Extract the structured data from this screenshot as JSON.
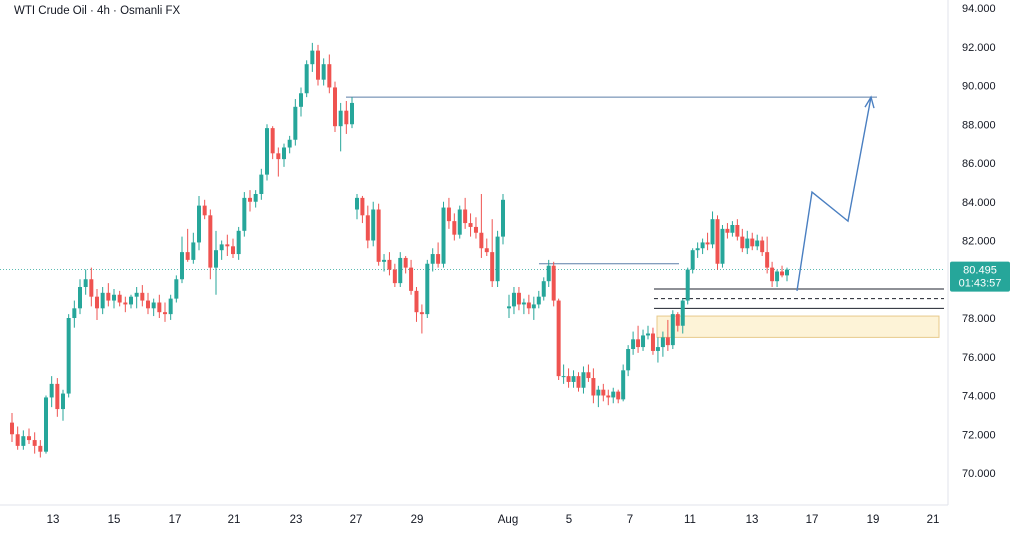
{
  "header": {
    "title": "WTI Crude Oil · 4h · Osmanli FX"
  },
  "chart_data": {
    "type": "candlestick",
    "title": "WTI Crude Oil · 4h · Osmanli FX",
    "symbol": "WTI Crude Oil",
    "interval": "4h",
    "broker": "Osmanli FX",
    "xlabel": "",
    "ylabel": "",
    "ylim": [
      69.0,
      94.5
    ],
    "y_ticks": [
      "94.000",
      "92.000",
      "90.000",
      "88.000",
      "86.000",
      "84.000",
      "82.000",
      "80.000",
      "78.000",
      "76.000",
      "74.000",
      "72.000",
      "70.000"
    ],
    "x_ticks": [
      "13",
      "15",
      "17",
      "21",
      "23",
      "27",
      "29",
      "Aug",
      "5",
      "7",
      "11",
      "13",
      "17",
      "19",
      "21"
    ],
    "grid": false,
    "last_price": "80.495",
    "countdown": "01:43:57",
    "colors": {
      "up": "#26a69a",
      "down": "#ef5350",
      "line": "#4a7fc1",
      "zone_fill": "#fdf3d7",
      "zone_border": "#e8c98a",
      "price_tag": "#26a69a"
    },
    "candles": [
      [
        72.6,
        73.1,
        71.6,
        72.0
      ],
      [
        72.0,
        72.4,
        71.2,
        71.4
      ],
      [
        71.4,
        72.2,
        71.2,
        71.9
      ],
      [
        71.9,
        72.3,
        71.5,
        71.7
      ],
      [
        71.7,
        72.1,
        71.0,
        71.4
      ],
      [
        71.4,
        71.7,
        70.8,
        71.1
      ],
      [
        71.1,
        74.0,
        71.0,
        73.9
      ],
      [
        73.9,
        75.0,
        73.4,
        74.6
      ],
      [
        74.6,
        74.9,
        72.9,
        73.3
      ],
      [
        73.3,
        74.3,
        72.7,
        74.1
      ],
      [
        74.1,
        78.2,
        73.9,
        78.0
      ],
      [
        78.0,
        78.9,
        77.5,
        78.5
      ],
      [
        78.5,
        80.0,
        78.2,
        79.6
      ],
      [
        79.6,
        80.5,
        79.2,
        80.0
      ],
      [
        80.0,
        80.6,
        78.6,
        79.1
      ],
      [
        79.1,
        79.5,
        77.9,
        78.5
      ],
      [
        78.5,
        79.6,
        78.2,
        79.3
      ],
      [
        79.3,
        79.8,
        78.6,
        78.9
      ],
      [
        78.9,
        79.5,
        78.5,
        79.2
      ],
      [
        79.2,
        79.4,
        78.6,
        78.8
      ],
      [
        78.8,
        79.1,
        78.3,
        78.7
      ],
      [
        78.7,
        79.2,
        78.5,
        79.1
      ],
      [
        79.1,
        79.6,
        78.5,
        79.3
      ],
      [
        79.3,
        79.7,
        78.6,
        78.9
      ],
      [
        78.9,
        79.3,
        78.2,
        78.5
      ],
      [
        78.5,
        79.0,
        78.1,
        78.8
      ],
      [
        78.8,
        79.2,
        78.0,
        78.3
      ],
      [
        78.3,
        78.8,
        77.8,
        78.2
      ],
      [
        78.2,
        79.2,
        77.9,
        79.0
      ],
      [
        79.0,
        80.2,
        78.8,
        80.0
      ],
      [
        80.0,
        82.2,
        79.8,
        81.4
      ],
      [
        81.4,
        82.6,
        80.9,
        81.0
      ],
      [
        81.0,
        82.4,
        80.8,
        81.9
      ],
      [
        81.9,
        84.3,
        81.5,
        83.8
      ],
      [
        83.8,
        84.1,
        83.1,
        83.3
      ],
      [
        83.3,
        83.6,
        80.0,
        80.6
      ],
      [
        80.6,
        82.5,
        79.2,
        81.5
      ],
      [
        81.5,
        82.0,
        81.0,
        81.8
      ],
      [
        81.8,
        82.3,
        81.2,
        81.7
      ],
      [
        81.7,
        82.1,
        81.1,
        81.3
      ],
      [
        81.3,
        82.7,
        81.0,
        82.5
      ],
      [
        82.5,
        84.5,
        82.2,
        84.2
      ],
      [
        84.2,
        84.6,
        83.5,
        84.0
      ],
      [
        84.0,
        84.6,
        83.7,
        84.4
      ],
      [
        84.4,
        85.7,
        84.1,
        85.4
      ],
      [
        85.4,
        88.0,
        85.1,
        87.8
      ],
      [
        87.8,
        87.9,
        86.2,
        86.5
      ],
      [
        86.5,
        86.8,
        85.3,
        86.2
      ],
      [
        86.2,
        87.0,
        85.8,
        86.8
      ],
      [
        86.8,
        87.4,
        86.5,
        87.2
      ],
      [
        87.2,
        89.3,
        86.9,
        88.9
      ],
      [
        88.9,
        89.9,
        88.4,
        89.6
      ],
      [
        89.6,
        91.3,
        89.4,
        91.1
      ],
      [
        91.1,
        92.2,
        90.7,
        91.8
      ],
      [
        91.8,
        92.1,
        90.0,
        90.3
      ],
      [
        90.3,
        91.4,
        90.0,
        91.1
      ],
      [
        91.1,
        91.6,
        89.6,
        89.9
      ],
      [
        89.9,
        90.2,
        87.6,
        87.9
      ],
      [
        87.9,
        89.1,
        86.6,
        88.7
      ],
      [
        88.7,
        89.2,
        87.5,
        88.0
      ],
      [
        88.0,
        89.4,
        87.8,
        89.1
      ],
      [
        83.6,
        84.4,
        83.1,
        84.2
      ],
      [
        84.2,
        84.3,
        82.9,
        83.3
      ],
      [
        83.3,
        83.8,
        81.6,
        82.0
      ],
      [
        82.0,
        84.0,
        81.7,
        83.6
      ],
      [
        83.6,
        83.9,
        80.7,
        80.9
      ],
      [
        80.9,
        81.3,
        80.4,
        81.0
      ],
      [
        81.0,
        81.4,
        80.2,
        80.5
      ],
      [
        80.5,
        80.8,
        79.6,
        79.8
      ],
      [
        79.8,
        81.4,
        79.6,
        81.1
      ],
      [
        81.1,
        81.2,
        80.3,
        80.6
      ],
      [
        80.6,
        81.0,
        79.2,
        79.4
      ],
      [
        79.4,
        79.6,
        77.8,
        78.3
      ],
      [
        78.3,
        78.7,
        77.2,
        78.2
      ],
      [
        78.2,
        81.0,
        78.0,
        80.8
      ],
      [
        80.8,
        81.6,
        80.4,
        81.3
      ],
      [
        81.3,
        81.9,
        80.6,
        80.8
      ],
      [
        80.8,
        84.0,
        80.6,
        83.7
      ],
      [
        83.7,
        84.2,
        82.6,
        83.0
      ],
      [
        83.0,
        83.4,
        82.0,
        82.3
      ],
      [
        82.3,
        83.8,
        82.1,
        83.6
      ],
      [
        83.6,
        84.2,
        82.6,
        82.9
      ],
      [
        82.9,
        83.4,
        82.2,
        82.7
      ],
      [
        82.7,
        83.2,
        82.1,
        82.4
      ],
      [
        82.4,
        84.4,
        81.1,
        81.6
      ],
      [
        81.6,
        82.1,
        81.2,
        81.4
      ],
      [
        81.4,
        83.1,
        79.6,
        79.9
      ],
      [
        79.9,
        82.5,
        79.6,
        82.2
      ],
      [
        82.2,
        84.4,
        81.8,
        84.1
      ],
      [
        78.5,
        79.2,
        78.0,
        78.6
      ],
      [
        78.6,
        79.6,
        78.2,
        79.3
      ],
      [
        79.3,
        79.6,
        78.4,
        78.7
      ],
      [
        78.7,
        79.0,
        78.2,
        78.8
      ],
      [
        78.8,
        79.2,
        78.2,
        78.5
      ],
      [
        78.5,
        79.1,
        77.9,
        78.7
      ],
      [
        78.7,
        79.4,
        78.5,
        79.1
      ],
      [
        79.1,
        80.1,
        78.9,
        79.9
      ],
      [
        79.9,
        81.0,
        79.6,
        80.7
      ],
      [
        80.7,
        80.9,
        78.6,
        78.9
      ],
      [
        78.9,
        79.0,
        74.8,
        75.0
      ],
      [
        75.0,
        75.6,
        74.6,
        75.0
      ],
      [
        75.0,
        75.4,
        74.4,
        74.7
      ],
      [
        74.7,
        75.3,
        74.4,
        75.0
      ],
      [
        75.0,
        75.2,
        74.2,
        74.4
      ],
      [
        74.4,
        75.5,
        74.1,
        75.2
      ],
      [
        75.2,
        75.6,
        74.7,
        74.9
      ],
      [
        74.9,
        75.4,
        73.6,
        74.0
      ],
      [
        74.0,
        74.5,
        73.4,
        74.3
      ],
      [
        74.3,
        74.6,
        73.7,
        74.0
      ],
      [
        74.0,
        74.3,
        73.5,
        73.9
      ],
      [
        73.9,
        74.4,
        73.6,
        74.2
      ],
      [
        74.2,
        74.3,
        73.6,
        73.8
      ],
      [
        73.8,
        75.6,
        73.7,
        75.3
      ],
      [
        75.3,
        76.6,
        75.0,
        76.4
      ],
      [
        76.4,
        77.3,
        76.1,
        76.9
      ],
      [
        76.9,
        77.6,
        76.2,
        76.5
      ],
      [
        76.5,
        77.4,
        76.3,
        77.1
      ],
      [
        77.1,
        77.6,
        76.9,
        77.2
      ],
      [
        77.2,
        77.5,
        76.1,
        76.3
      ],
      [
        76.3,
        77.0,
        75.7,
        76.5
      ],
      [
        76.5,
        77.3,
        76.0,
        77.0
      ],
      [
        77.0,
        77.9,
        76.3,
        76.6
      ],
      [
        76.6,
        78.4,
        76.4,
        78.2
      ],
      [
        78.2,
        78.3,
        77.3,
        77.6
      ],
      [
        77.6,
        79.0,
        77.2,
        78.9
      ],
      [
        78.9,
        80.6,
        78.7,
        80.5
      ],
      [
        80.5,
        81.6,
        80.3,
        81.5
      ],
      [
        81.5,
        81.9,
        81.1,
        81.6
      ],
      [
        81.6,
        82.1,
        81.3,
        81.9
      ],
      [
        81.9,
        82.4,
        81.5,
        81.8
      ],
      [
        81.8,
        83.5,
        81.6,
        83.1
      ],
      [
        83.1,
        83.3,
        80.5,
        80.8
      ],
      [
        80.8,
        82.8,
        80.6,
        82.6
      ],
      [
        82.6,
        82.9,
        82.1,
        82.4
      ],
      [
        82.4,
        83.0,
        82.2,
        82.8
      ],
      [
        82.8,
        83.1,
        82.0,
        82.2
      ],
      [
        82.2,
        82.6,
        81.4,
        81.6
      ],
      [
        81.6,
        82.5,
        81.3,
        82.1
      ],
      [
        82.1,
        82.4,
        81.5,
        81.7
      ],
      [
        81.7,
        82.3,
        81.5,
        82.0
      ],
      [
        82.0,
        82.2,
        81.2,
        81.4
      ],
      [
        81.4,
        82.2,
        80.3,
        80.6
      ],
      [
        80.6,
        80.9,
        79.6,
        79.9
      ],
      [
        79.9,
        80.5,
        79.6,
        80.4
      ],
      [
        80.4,
        80.7,
        80.1,
        80.2
      ],
      [
        80.2,
        80.6,
        79.9,
        80.5
      ]
    ],
    "annotations": {
      "resistance_level": 89.4,
      "breakout_level": 80.8,
      "support_level": 79.5,
      "support_dashed": 79.0,
      "support_level_2": 78.5,
      "demand_zone": [
        77.0,
        78.1
      ],
      "projection_path": [
        [
          0,
          79.4
        ],
        [
          1,
          84.5
        ],
        [
          2,
          83.0
        ],
        [
          3,
          89.4
        ]
      ]
    }
  }
}
